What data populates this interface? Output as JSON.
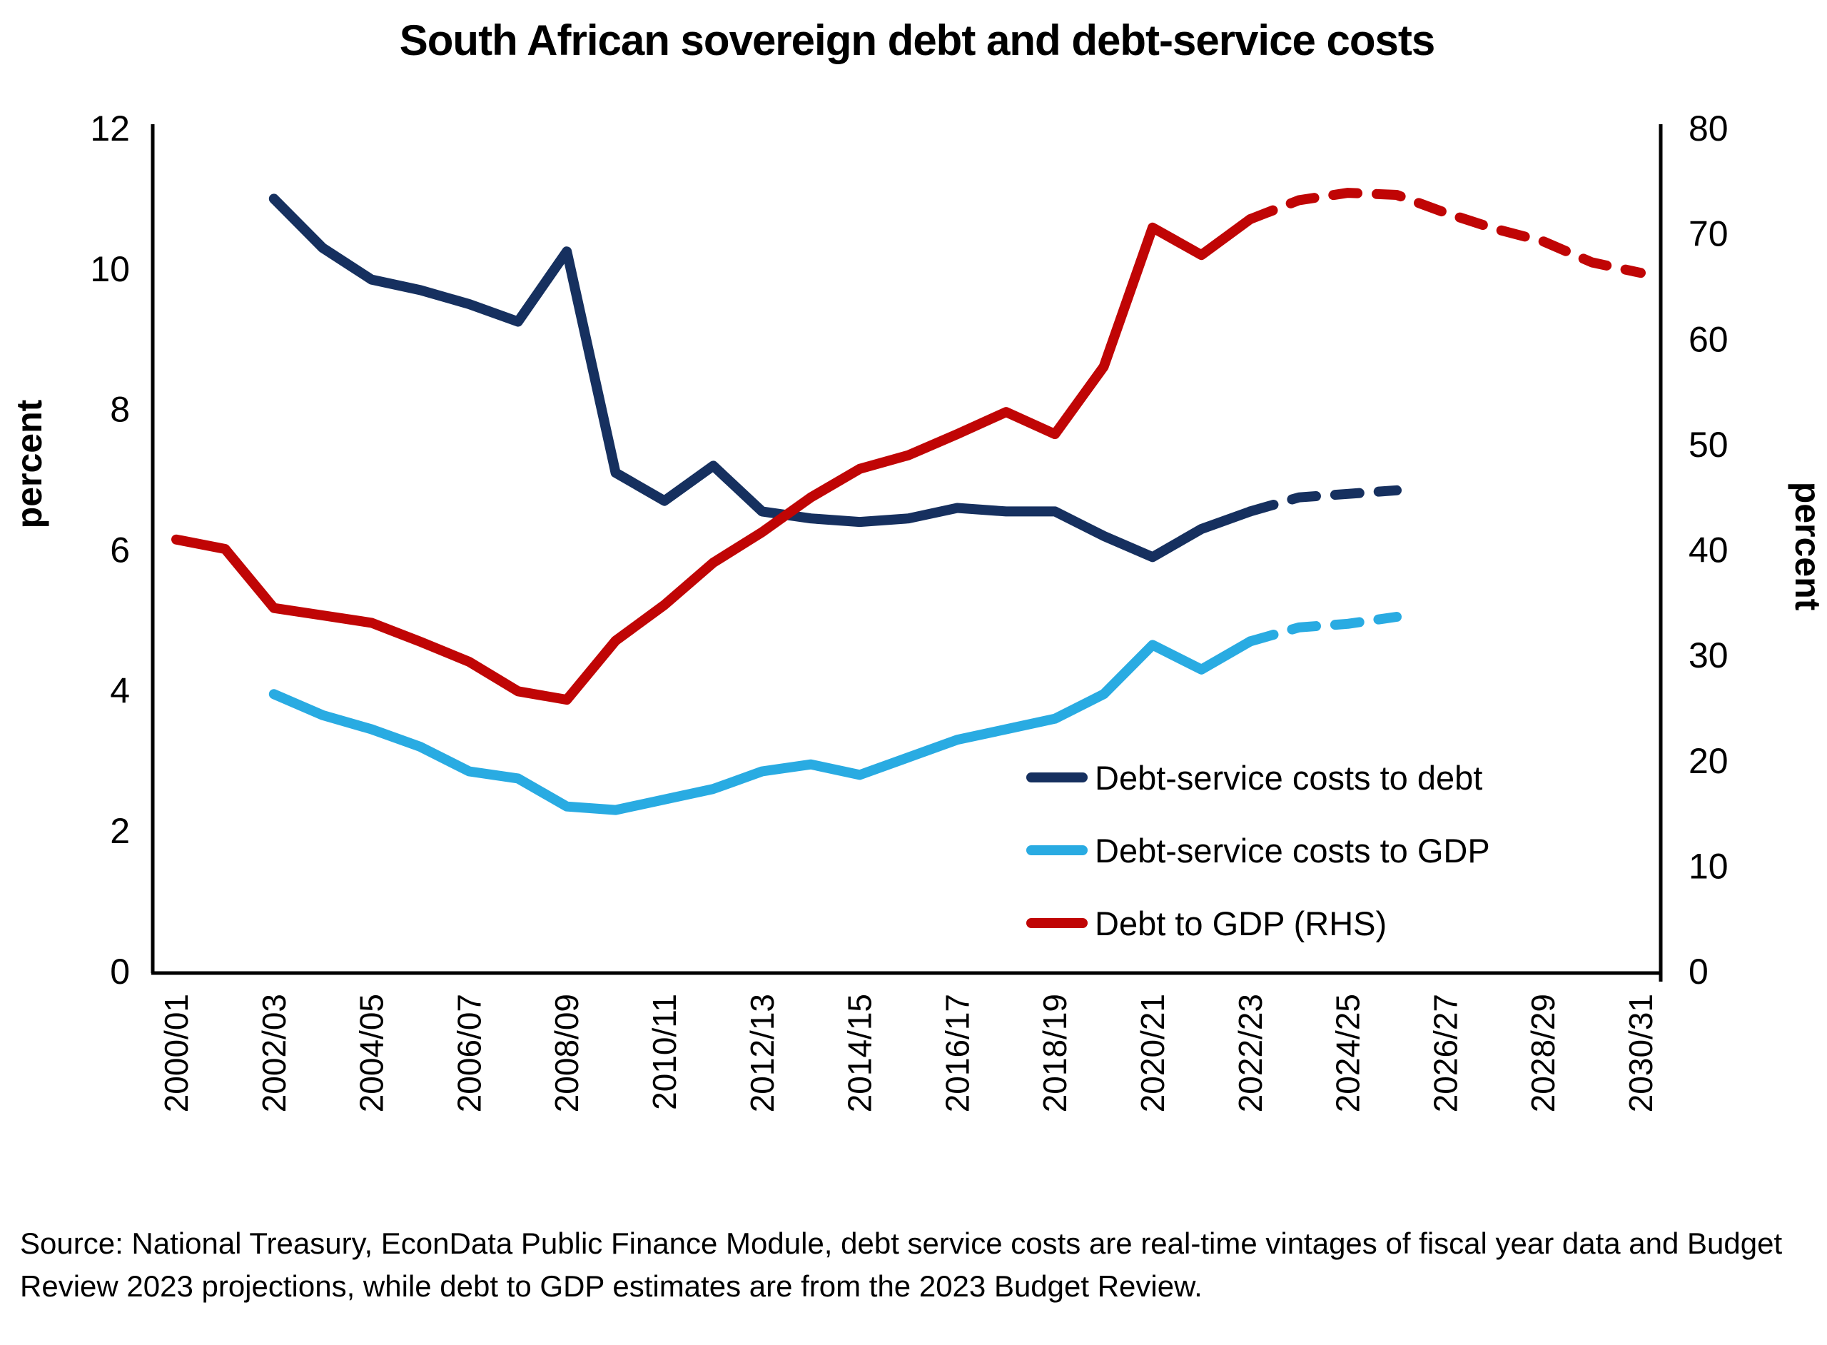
{
  "title": "South African sovereign debt and debt-service costs",
  "source_note": "Source: National Treasury, EconData Public Finance Module, debt service costs are real-time vintages of fiscal year data and Budget Review 2023 projections, while debt to GDP estimates are from the 2023 Budget Review.",
  "left_axis": {
    "label": "percent",
    "ticks": [
      "0",
      "2",
      "4",
      "6",
      "8",
      "10",
      "12"
    ],
    "min": 0,
    "max": 12
  },
  "right_axis": {
    "label": "percent",
    "ticks": [
      "0",
      "10",
      "20",
      "30",
      "40",
      "50",
      "60",
      "70",
      "80"
    ],
    "min": 0,
    "max": 80
  },
  "x_axis": {
    "shown_tick_labels": [
      "2000/01",
      "2002/03",
      "2004/05",
      "2006/07",
      "2008/09",
      "2010/11",
      "2012/13",
      "2014/15",
      "2016/17",
      "2018/19",
      "2020/21",
      "2022/23",
      "2024/25",
      "2026/27",
      "2028/29",
      "2030/31"
    ]
  },
  "legend": [
    {
      "label": "Debt-service costs to debt",
      "color": "#16305F"
    },
    {
      "label": "Debt-service costs to GDP",
      "color": "#29ABE2"
    },
    {
      "label": "Debt to GDP (RHS)",
      "color": "#C00505"
    }
  ],
  "colors": {
    "navy": "#16305F",
    "light_blue": "#29ABE2",
    "red": "#C00505",
    "axis": "#000000"
  },
  "chart_data": {
    "type": "line",
    "title": "South African sovereign debt and debt-service costs",
    "x_categories": [
      "2000/01",
      "2001/02",
      "2002/03",
      "2003/04",
      "2004/05",
      "2005/06",
      "2006/07",
      "2007/08",
      "2008/09",
      "2009/10",
      "2010/11",
      "2011/12",
      "2012/13",
      "2013/14",
      "2014/15",
      "2015/16",
      "2016/17",
      "2017/18",
      "2018/19",
      "2019/20",
      "2020/21",
      "2021/22",
      "2022/23",
      "2023/24",
      "2024/25",
      "2025/26",
      "2026/27",
      "2027/28",
      "2028/29",
      "2029/30",
      "2030/31"
    ],
    "left_ylim": [
      0,
      12
    ],
    "right_ylim": [
      0,
      80
    ],
    "grid": false,
    "legend_position": "inside-right",
    "note": "dashed segments are projections from 2022/23 onward",
    "series": [
      {
        "name": "Debt-service costs to debt",
        "axis": "left",
        "color": "#16305F",
        "start_index": 2,
        "solid_points": 21,
        "values": [
          11.0,
          10.3,
          9.85,
          9.7,
          9.5,
          9.25,
          10.25,
          7.1,
          6.7,
          7.2,
          6.55,
          6.45,
          6.4,
          6.45,
          6.6,
          6.55,
          6.55,
          6.2,
          5.9,
          6.3,
          6.55,
          6.75,
          6.8,
          6.85
        ]
      },
      {
        "name": "Debt-service costs to GDP",
        "axis": "left",
        "color": "#29ABE2",
        "start_index": 2,
        "solid_points": 21,
        "values": [
          3.95,
          3.65,
          3.45,
          3.2,
          2.85,
          2.75,
          2.35,
          2.3,
          2.45,
          2.6,
          2.85,
          2.95,
          2.8,
          3.05,
          3.3,
          3.45,
          3.6,
          3.95,
          4.65,
          4.3,
          4.7,
          4.9,
          4.95,
          5.05
        ]
      },
      {
        "name": "Debt to GDP (RHS)",
        "axis": "right",
        "color": "#C00505",
        "start_index": 0,
        "solid_points": 23,
        "values": [
          41.0,
          40.1,
          34.5,
          33.8,
          33.1,
          31.3,
          29.4,
          26.6,
          25.8,
          31.4,
          34.8,
          38.8,
          41.7,
          45.0,
          47.7,
          49.0,
          51.0,
          53.1,
          51.0,
          57.4,
          70.6,
          68.0,
          71.4,
          73.2,
          73.9,
          73.7,
          72.0,
          70.5,
          69.3,
          67.3,
          66.3
        ]
      }
    ]
  }
}
